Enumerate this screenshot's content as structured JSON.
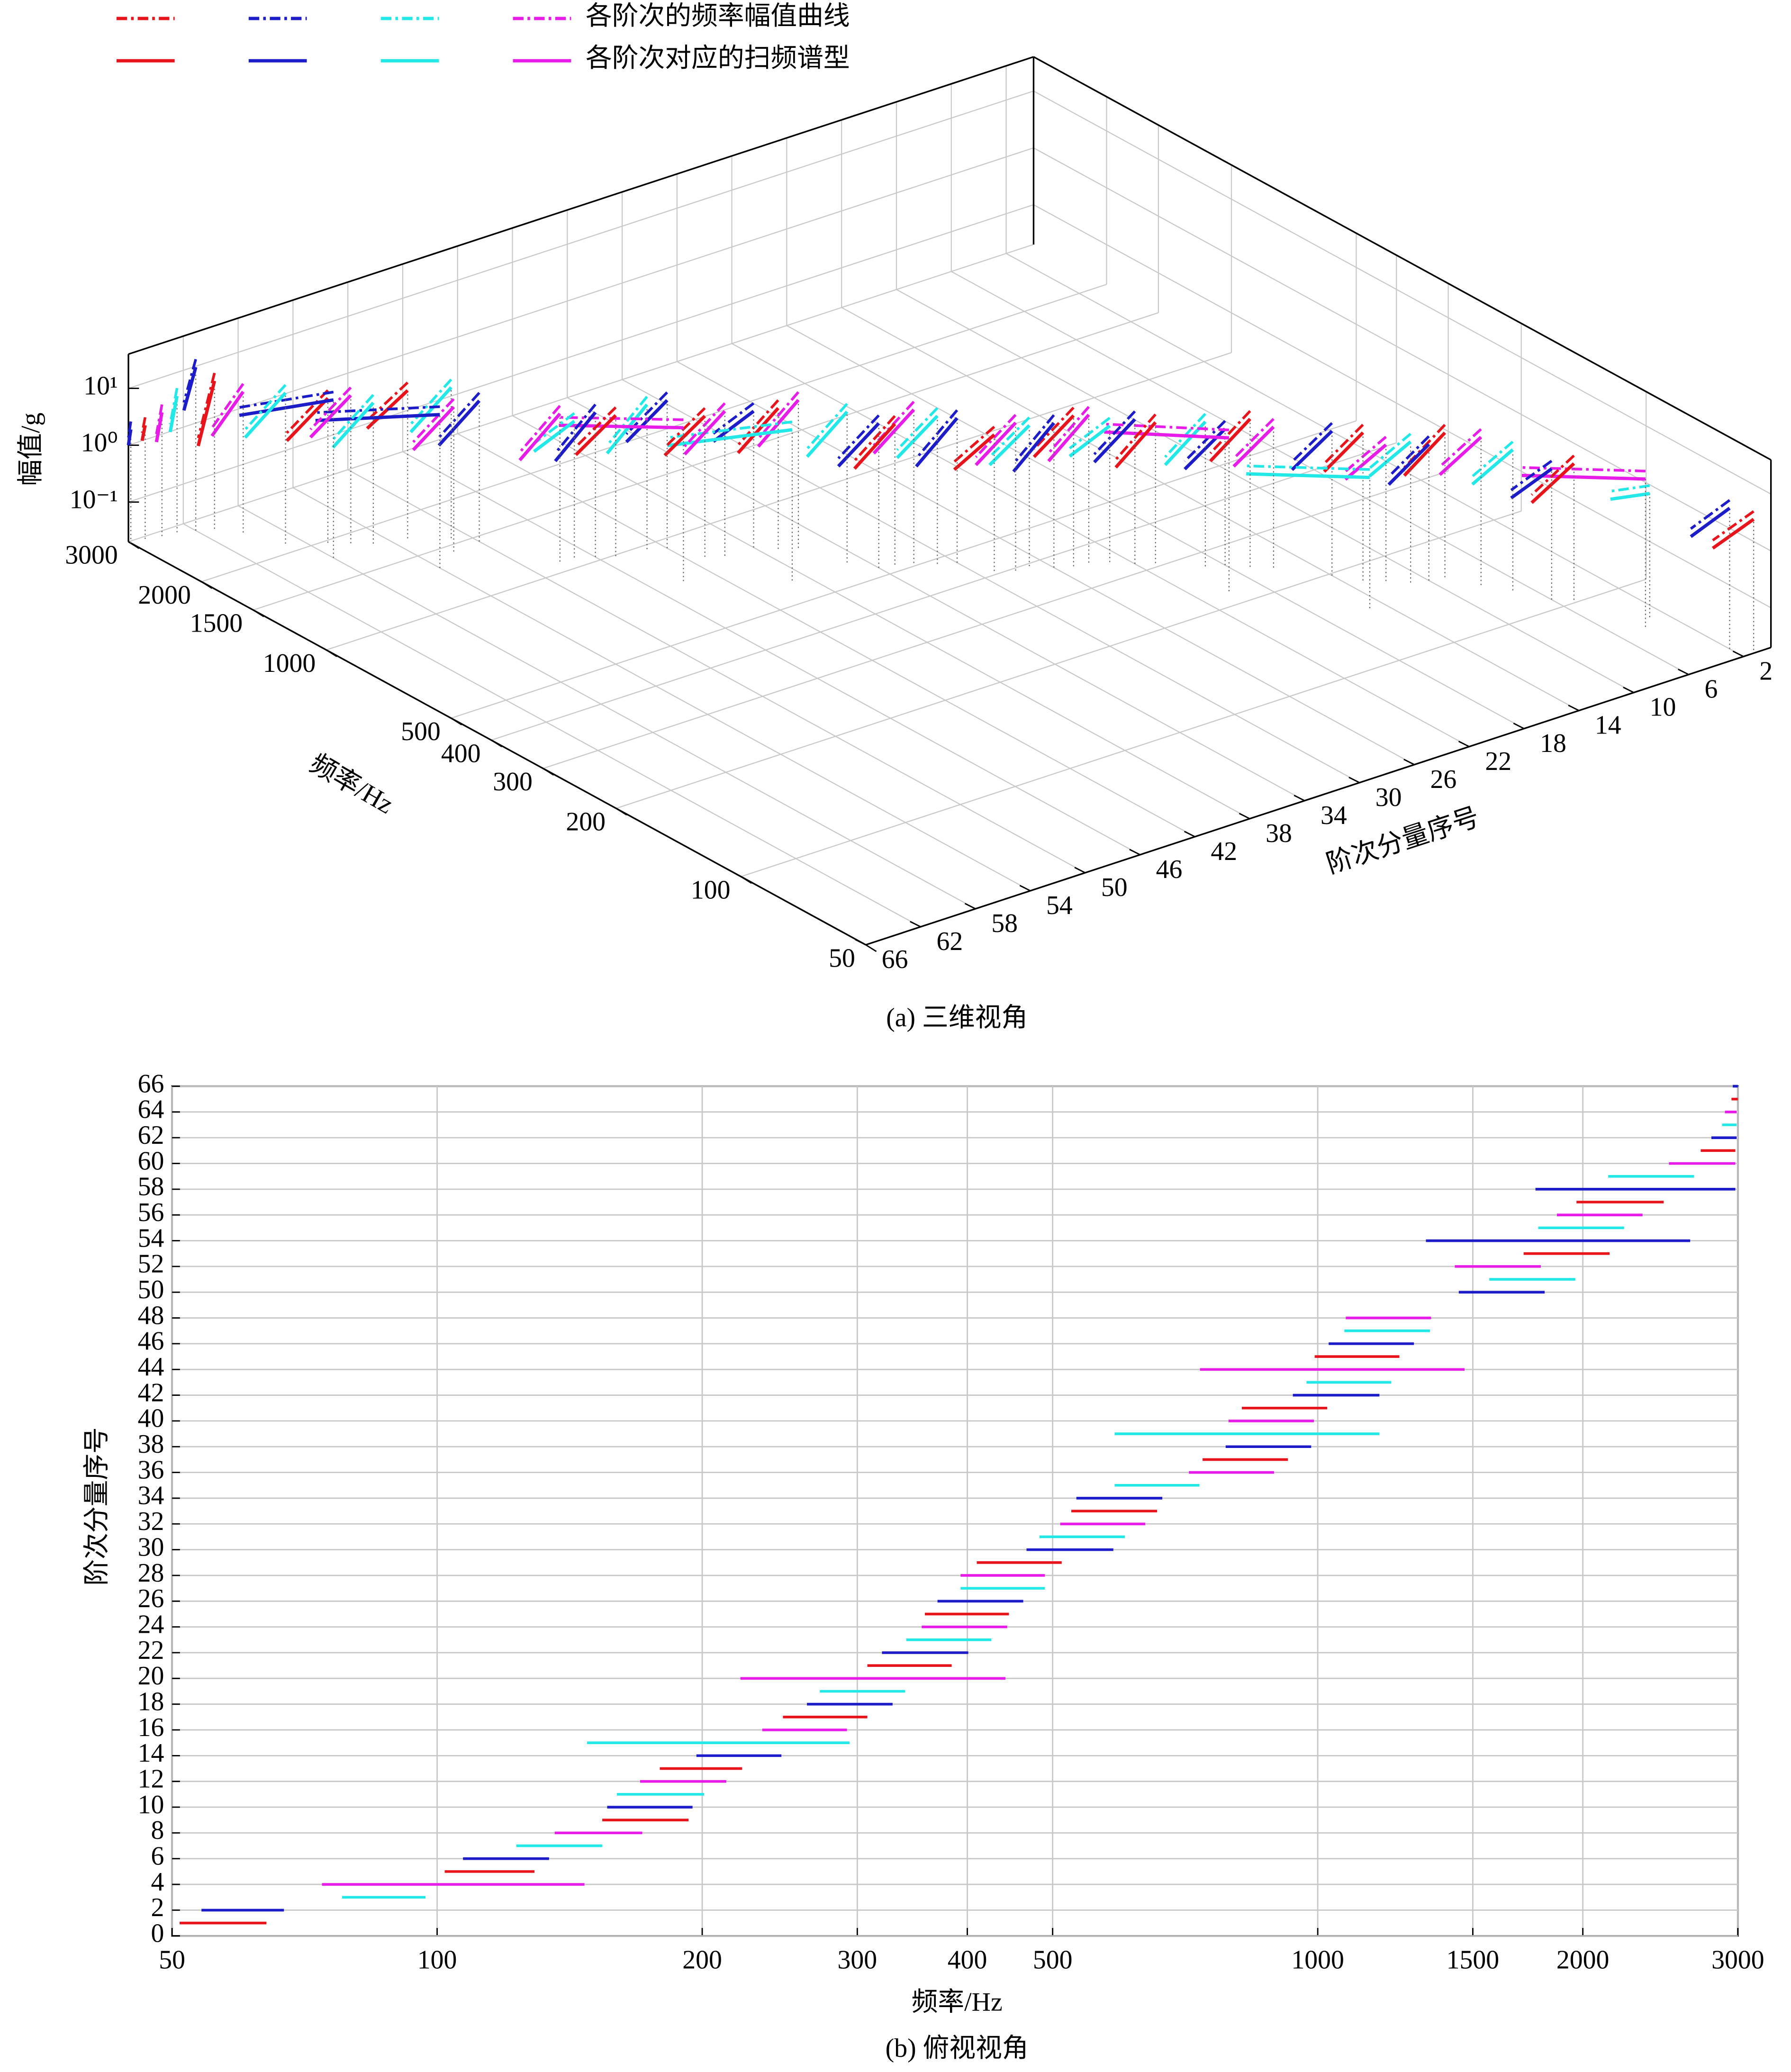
{
  "chart_data": [
    {
      "type": "line3d",
      "title": "(a) 三维视角",
      "xlabel": "频率/Hz",
      "ylabel": "阶次分量序号",
      "zlabel": "幅值/g",
      "xlog": true,
      "xlim": [
        50,
        3000
      ],
      "xticks": [
        50,
        100,
        200,
        300,
        400,
        500,
        1000,
        1500,
        2000,
        3000
      ],
      "ylim": [
        0,
        66
      ],
      "yticks": [
        2,
        6,
        10,
        14,
        18,
        22,
        26,
        30,
        34,
        38,
        42,
        46,
        50,
        54,
        58,
        62,
        66
      ],
      "zlog": true,
      "zlim": [
        0.02,
        40
      ],
      "zticks": [
        {
          "value": 0.1,
          "label": "10⁻¹"
        },
        {
          "value": 1,
          "label": "10⁰"
        },
        {
          "value": 10,
          "label": "10¹"
        }
      ],
      "grid": true,
      "colors": [
        "#e8141c",
        "#1c1cc8",
        "#22e8e8",
        "#e81ce8"
      ],
      "legend": [
        {
          "label": "各阶次的频率幅值曲线",
          "dash": "dashdot"
        },
        {
          "label": "各阶次对应的扫频谱型",
          "dash": "solid"
        }
      ],
      "orders": [
        1,
        2,
        3,
        4,
        5,
        6,
        7,
        8,
        9,
        10,
        11,
        12,
        13,
        14,
        15,
        16,
        17,
        18,
        19,
        20,
        21,
        22,
        23,
        24,
        25,
        26,
        27,
        28,
        29,
        30,
        31,
        32,
        33,
        34,
        35,
        36,
        37,
        38,
        39,
        40,
        41,
        42,
        43,
        44,
        45,
        46,
        47,
        48,
        50,
        51,
        52,
        53,
        54,
        55,
        56,
        57,
        58,
        59,
        60,
        61,
        62,
        63,
        64,
        65,
        66
      ],
      "start": [
        51,
        54,
        78,
        74,
        102,
        107,
        123,
        136,
        154,
        156,
        160,
        170,
        179,
        197,
        148,
        234,
        247,
        263,
        272,
        221,
        308,
        320,
        341,
        355,
        358,
        370,
        393,
        393,
        410,
        467,
        483,
        510,
        525,
        532,
        588,
        714,
        740,
        786,
        588,
        792,
        820,
        937,
        971,
        735,
        992,
        1029,
        1072,
        1076,
        1446,
        1566,
        1431,
        1713,
        1327,
        1780,
        1869,
        1967,
        1767,
        2137,
        2505,
        2722,
        2799,
        2878,
        2900,
        2950,
        2960
      ],
      "end": [
        64,
        67,
        97,
        147,
        129,
        134,
        154,
        171,
        193,
        195,
        201,
        213,
        222,
        246,
        294,
        292,
        308,
        329,
        340,
        442,
        384,
        401,
        426,
        444,
        446,
        463,
        490,
        490,
        512,
        586,
        604,
        637,
        657,
        666,
        734,
        892,
        925,
        983,
        1175,
        990,
        1025,
        1175,
        1212,
        1468,
        1238,
        1286,
        1341,
        1345,
        1810,
        1961,
        1792,
        2145,
        2648,
        2228,
        2338,
        2471,
        2980,
        2675,
        2980,
        2980,
        2990,
        2990,
        2990,
        3000,
        3000
      ],
      "amp_start": [
        4,
        6,
        3,
        8,
        5,
        4,
        6,
        8,
        7,
        5,
        6,
        5,
        8,
        7,
        4,
        6,
        8,
        5,
        7,
        10,
        6,
        7,
        5,
        8,
        9,
        7,
        6,
        8,
        5,
        7,
        8,
        10,
        6,
        7,
        9,
        8,
        6,
        5,
        9,
        7,
        6,
        8,
        7,
        10,
        6,
        7,
        5,
        8,
        6,
        9,
        7,
        8,
        10,
        6,
        8,
        7,
        12,
        9,
        6,
        8,
        15,
        5,
        3,
        2,
        2
      ],
      "amp_end": [
        0.5,
        0.8,
        1,
        0.6,
        0.4,
        0.5,
        0.6,
        0.7,
        0.5,
        0.4,
        0.6,
        0.5,
        0.7,
        0.6,
        0.3,
        0.5,
        0.6,
        0.4,
        0.5,
        0.8,
        0.4,
        0.5,
        0.6,
        0.5,
        0.7,
        0.4,
        0.5,
        0.6,
        0.5,
        0.4,
        0.6,
        0.7,
        0.4,
        0.5,
        0.6,
        0.5,
        0.4,
        0.6,
        0.3,
        0.5,
        0.5,
        0.6,
        0.4,
        0.7,
        0.5,
        0.4,
        0.6,
        0.5,
        0.4,
        0.6,
        0.5,
        0.7,
        0.5,
        0.4,
        0.6,
        0.5,
        0.8,
        0.6,
        0.5,
        0.4,
        2,
        1,
        0.8,
        1,
        1
      ]
    },
    {
      "type": "range",
      "title": "(b) 俯视视角",
      "xlabel": "频率/Hz",
      "ylabel": "阶次分量序号",
      "xlog": true,
      "xlim": [
        50,
        3000
      ],
      "xticks": [
        50,
        100,
        200,
        300,
        400,
        500,
        1000,
        1500,
        2000,
        3000
      ],
      "ylim": [
        0,
        66
      ],
      "yticks": [
        0,
        2,
        4,
        6,
        8,
        10,
        12,
        14,
        16,
        18,
        20,
        22,
        24,
        26,
        28,
        30,
        32,
        34,
        36,
        38,
        40,
        42,
        44,
        46,
        48,
        50,
        52,
        54,
        56,
        58,
        60,
        62,
        64,
        66
      ],
      "grid": true,
      "colors": [
        "#e8141c",
        "#1c1cc8",
        "#22e8e8",
        "#e81ce8"
      ],
      "orders": [
        1,
        2,
        3,
        4,
        5,
        6,
        7,
        8,
        9,
        10,
        11,
        12,
        13,
        14,
        15,
        16,
        17,
        18,
        19,
        20,
        21,
        22,
        23,
        24,
        25,
        26,
        27,
        28,
        29,
        30,
        31,
        32,
        33,
        34,
        35,
        36,
        37,
        38,
        39,
        40,
        41,
        42,
        43,
        44,
        45,
        46,
        47,
        48,
        50,
        51,
        52,
        53,
        54,
        55,
        56,
        57,
        58,
        59,
        60,
        61,
        62,
        63,
        64,
        65,
        66
      ],
      "start": [
        51,
        54,
        78,
        74,
        102,
        107,
        123,
        136,
        154,
        156,
        160,
        170,
        179,
        197,
        148,
        234,
        247,
        263,
        272,
        221,
        308,
        320,
        341,
        355,
        358,
        370,
        393,
        393,
        410,
        467,
        483,
        510,
        525,
        532,
        588,
        714,
        740,
        786,
        588,
        792,
        820,
        937,
        971,
        735,
        992,
        1029,
        1072,
        1076,
        1446,
        1566,
        1431,
        1713,
        1327,
        1780,
        1869,
        1967,
        1767,
        2137,
        2505,
        2722,
        2799,
        2878,
        2900,
        2950,
        2960
      ],
      "end": [
        64,
        67,
        97,
        147,
        129,
        134,
        154,
        171,
        193,
        195,
        201,
        213,
        222,
        246,
        294,
        292,
        308,
        329,
        340,
        442,
        384,
        401,
        426,
        444,
        446,
        463,
        490,
        490,
        512,
        586,
        604,
        637,
        657,
        666,
        734,
        892,
        925,
        983,
        1175,
        990,
        1025,
        1175,
        1212,
        1468,
        1238,
        1286,
        1341,
        1345,
        1810,
        1961,
        1792,
        2145,
        2648,
        2228,
        2338,
        2471,
        2980,
        2675,
        2980,
        2980,
        2990,
        2990,
        2990,
        3000,
        3000
      ]
    }
  ]
}
